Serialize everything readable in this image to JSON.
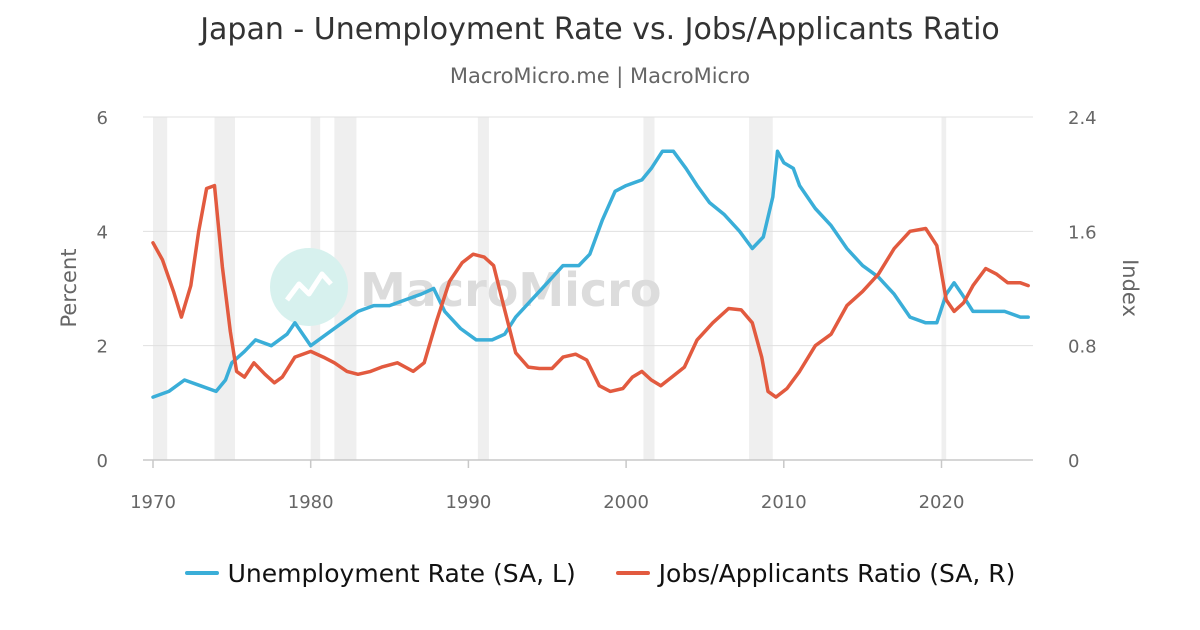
{
  "title": "Japan - Unemployment Rate vs. Jobs/Applicants Ratio",
  "subtitle": "MacroMicro.me | MacroMicro",
  "watermark": "MacroMicro",
  "colors": {
    "unemployment": "#3aaed8",
    "jobs_ratio": "#e25a3f",
    "recession": "#efefef",
    "grid": "#e0e0e0"
  },
  "chart_data": {
    "type": "line",
    "x_ticks": [
      "1970",
      "1980",
      "1990",
      "2000",
      "2010",
      "2020"
    ],
    "left_axis": {
      "label": "Percent",
      "ylim": [
        0,
        6
      ],
      "ticks": [
        "0",
        "2",
        "4",
        "6"
      ]
    },
    "right_axis": {
      "label": "Index",
      "ylim": [
        0,
        2.4
      ],
      "ticks": [
        "0",
        "0.8",
        "1.6",
        "2.4"
      ]
    },
    "recessions": [
      [
        1970.0,
        1970.9
      ],
      [
        1973.9,
        1975.2
      ],
      [
        1980.0,
        1980.6
      ],
      [
        1981.5,
        1982.9
      ],
      [
        1990.6,
        1991.3
      ],
      [
        2001.1,
        2001.8
      ],
      [
        2007.8,
        2009.3
      ],
      [
        2020.0,
        2020.3
      ]
    ],
    "series": [
      {
        "name": "Unemployment Rate (SA, L)",
        "axis": "left",
        "points": [
          [
            1970.0,
            1.1
          ],
          [
            1971.0,
            1.2
          ],
          [
            1972.0,
            1.4
          ],
          [
            1973.0,
            1.3
          ],
          [
            1974.0,
            1.2
          ],
          [
            1974.6,
            1.4
          ],
          [
            1975.0,
            1.7
          ],
          [
            1975.8,
            1.9
          ],
          [
            1976.5,
            2.1
          ],
          [
            1977.5,
            2.0
          ],
          [
            1978.5,
            2.2
          ],
          [
            1979.0,
            2.4
          ],
          [
            1980.0,
            2.0
          ],
          [
            1981.0,
            2.2
          ],
          [
            1982.0,
            2.4
          ],
          [
            1983.0,
            2.6
          ],
          [
            1984.0,
            2.7
          ],
          [
            1985.0,
            2.7
          ],
          [
            1986.0,
            2.8
          ],
          [
            1987.0,
            2.9
          ],
          [
            1987.8,
            3.0
          ],
          [
            1988.5,
            2.6
          ],
          [
            1989.5,
            2.3
          ],
          [
            1990.5,
            2.1
          ],
          [
            1991.5,
            2.1
          ],
          [
            1992.3,
            2.2
          ],
          [
            1993.0,
            2.5
          ],
          [
            1994.0,
            2.8
          ],
          [
            1995.0,
            3.1
          ],
          [
            1996.0,
            3.4
          ],
          [
            1997.0,
            3.4
          ],
          [
            1997.7,
            3.6
          ],
          [
            1998.5,
            4.2
          ],
          [
            1999.3,
            4.7
          ],
          [
            2000.0,
            4.8
          ],
          [
            2001.0,
            4.9
          ],
          [
            2001.6,
            5.1
          ],
          [
            2002.3,
            5.4
          ],
          [
            2003.0,
            5.4
          ],
          [
            2003.8,
            5.1
          ],
          [
            2004.5,
            4.8
          ],
          [
            2005.3,
            4.5
          ],
          [
            2006.2,
            4.3
          ],
          [
            2007.2,
            4.0
          ],
          [
            2008.0,
            3.7
          ],
          [
            2008.7,
            3.9
          ],
          [
            2009.3,
            4.6
          ],
          [
            2009.6,
            5.4
          ],
          [
            2010.0,
            5.2
          ],
          [
            2010.6,
            5.1
          ],
          [
            2011.0,
            4.8
          ],
          [
            2012.0,
            4.4
          ],
          [
            2013.0,
            4.1
          ],
          [
            2014.0,
            3.7
          ],
          [
            2015.0,
            3.4
          ],
          [
            2016.0,
            3.2
          ],
          [
            2017.0,
            2.9
          ],
          [
            2018.0,
            2.5
          ],
          [
            2019.0,
            2.4
          ],
          [
            2019.7,
            2.4
          ],
          [
            2020.3,
            2.9
          ],
          [
            2020.8,
            3.1
          ],
          [
            2021.3,
            2.9
          ],
          [
            2022.0,
            2.6
          ],
          [
            2023.0,
            2.6
          ],
          [
            2024.0,
            2.6
          ],
          [
            2025.0,
            2.5
          ],
          [
            2025.5,
            2.5
          ]
        ]
      },
      {
        "name": "Jobs/Applicants Ratio (SA, R)",
        "axis": "right",
        "points": [
          [
            1970.0,
            1.52
          ],
          [
            1970.6,
            1.4
          ],
          [
            1971.3,
            1.18
          ],
          [
            1971.8,
            1.0
          ],
          [
            1972.4,
            1.22
          ],
          [
            1972.9,
            1.6
          ],
          [
            1973.4,
            1.9
          ],
          [
            1973.9,
            1.92
          ],
          [
            1974.4,
            1.35
          ],
          [
            1974.9,
            0.9
          ],
          [
            1975.3,
            0.62
          ],
          [
            1975.8,
            0.58
          ],
          [
            1976.4,
            0.68
          ],
          [
            1977.1,
            0.6
          ],
          [
            1977.7,
            0.54
          ],
          [
            1978.2,
            0.58
          ],
          [
            1979.0,
            0.72
          ],
          [
            1980.0,
            0.76
          ],
          [
            1980.8,
            0.72
          ],
          [
            1981.5,
            0.68
          ],
          [
            1982.3,
            0.62
          ],
          [
            1983.0,
            0.6
          ],
          [
            1983.8,
            0.62
          ],
          [
            1984.5,
            0.65
          ],
          [
            1985.5,
            0.68
          ],
          [
            1986.5,
            0.62
          ],
          [
            1987.2,
            0.68
          ],
          [
            1988.0,
            0.98
          ],
          [
            1988.8,
            1.25
          ],
          [
            1989.6,
            1.38
          ],
          [
            1990.3,
            1.44
          ],
          [
            1991.0,
            1.42
          ],
          [
            1991.6,
            1.36
          ],
          [
            1992.3,
            1.05
          ],
          [
            1993.0,
            0.75
          ],
          [
            1993.8,
            0.65
          ],
          [
            1994.5,
            0.64
          ],
          [
            1995.3,
            0.64
          ],
          [
            1996.0,
            0.72
          ],
          [
            1996.8,
            0.74
          ],
          [
            1997.5,
            0.7
          ],
          [
            1998.3,
            0.52
          ],
          [
            1999.0,
            0.48
          ],
          [
            1999.8,
            0.5
          ],
          [
            2000.4,
            0.58
          ],
          [
            2001.0,
            0.62
          ],
          [
            2001.6,
            0.56
          ],
          [
            2002.2,
            0.52
          ],
          [
            2002.9,
            0.58
          ],
          [
            2003.7,
            0.65
          ],
          [
            2004.5,
            0.84
          ],
          [
            2005.5,
            0.96
          ],
          [
            2006.5,
            1.06
          ],
          [
            2007.3,
            1.05
          ],
          [
            2008.0,
            0.96
          ],
          [
            2008.6,
            0.72
          ],
          [
            2009.0,
            0.48
          ],
          [
            2009.5,
            0.44
          ],
          [
            2010.2,
            0.5
          ],
          [
            2011.0,
            0.62
          ],
          [
            2012.0,
            0.8
          ],
          [
            2013.0,
            0.88
          ],
          [
            2014.0,
            1.08
          ],
          [
            2015.0,
            1.18
          ],
          [
            2016.0,
            1.3
          ],
          [
            2017.0,
            1.48
          ],
          [
            2018.0,
            1.6
          ],
          [
            2019.0,
            1.62
          ],
          [
            2019.7,
            1.5
          ],
          [
            2020.3,
            1.12
          ],
          [
            2020.8,
            1.04
          ],
          [
            2021.4,
            1.1
          ],
          [
            2022.0,
            1.22
          ],
          [
            2022.8,
            1.34
          ],
          [
            2023.5,
            1.3
          ],
          [
            2024.2,
            1.24
          ],
          [
            2025.0,
            1.24
          ],
          [
            2025.5,
            1.22
          ]
        ]
      }
    ]
  }
}
